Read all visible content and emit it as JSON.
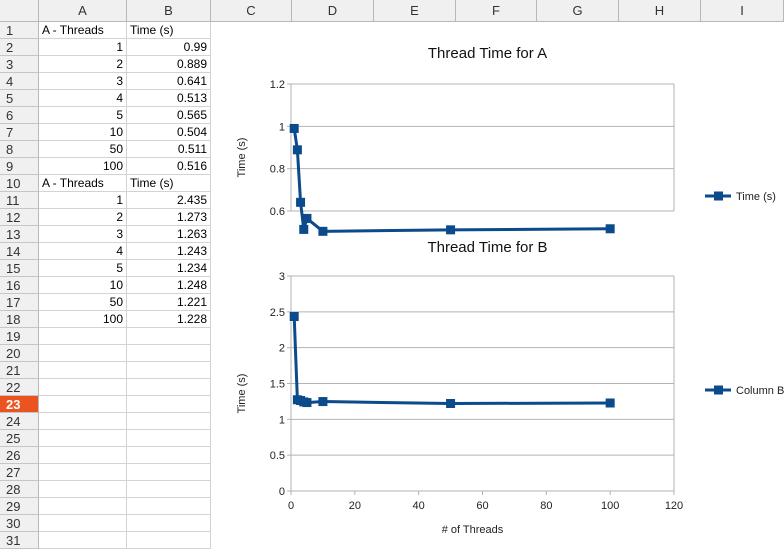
{
  "columns": [
    "A",
    "B",
    "C",
    "D",
    "E",
    "F",
    "G",
    "H",
    "I"
  ],
  "rows": [
    "1",
    "2",
    "3",
    "4",
    "5",
    "6",
    "7",
    "8",
    "9",
    "10",
    "11",
    "12",
    "13",
    "14",
    "15",
    "16",
    "17",
    "18",
    "19",
    "20",
    "21",
    "22",
    "23",
    "24",
    "25",
    "26",
    "27",
    "28",
    "29",
    "30",
    "31"
  ],
  "active_row": "23",
  "cells": [
    [
      "A - Threads",
      "Time (s)"
    ],
    [
      "1",
      "0.99"
    ],
    [
      "2",
      "0.889"
    ],
    [
      "3",
      "0.641"
    ],
    [
      "4",
      "0.513"
    ],
    [
      "5",
      "0.565"
    ],
    [
      "10",
      "0.504"
    ],
    [
      "50",
      "0.511"
    ],
    [
      "100",
      "0.516"
    ],
    [
      "A - Threads",
      "Time (s)"
    ],
    [
      "1",
      "2.435"
    ],
    [
      "2",
      "1.273"
    ],
    [
      "3",
      "1.263"
    ],
    [
      "4",
      "1.243"
    ],
    [
      "5",
      "1.234"
    ],
    [
      "10",
      "1.248"
    ],
    [
      "50",
      "1.221"
    ],
    [
      "100",
      "1.228"
    ]
  ],
  "chart_data": [
    {
      "type": "line",
      "title": "Thread Time for A",
      "ylabel": "Time (s)",
      "xlabel": "",
      "ylim": [
        0.6,
        1.2
      ],
      "yticks": [
        "0.6",
        "0.8",
        "1",
        "1.2"
      ],
      "legend": "right",
      "series": [
        {
          "name": "Time (s)",
          "x": [
            1,
            2,
            3,
            4,
            5,
            10,
            50,
            100
          ],
          "values": [
            0.99,
            0.889,
            0.641,
            0.513,
            0.565,
            0.504,
            0.511,
            0.516
          ]
        }
      ],
      "color": "#0b4a8b"
    },
    {
      "type": "line",
      "title": "Thread Time for B",
      "ylabel": "Time (s)",
      "xlabel": "# of Threads",
      "ylim": [
        0,
        3
      ],
      "xlim": [
        0,
        120
      ],
      "yticks": [
        "0",
        "0.5",
        "1",
        "1.5",
        "2",
        "2.5",
        "3"
      ],
      "xticks": [
        "0",
        "20",
        "40",
        "60",
        "80",
        "100",
        "120"
      ],
      "legend": "right",
      "series": [
        {
          "name": "Column B",
          "x": [
            1,
            2,
            3,
            4,
            5,
            10,
            50,
            100
          ],
          "values": [
            2.435,
            1.273,
            1.263,
            1.243,
            1.234,
            1.248,
            1.221,
            1.228
          ]
        }
      ],
      "color": "#0b4a8b"
    }
  ]
}
